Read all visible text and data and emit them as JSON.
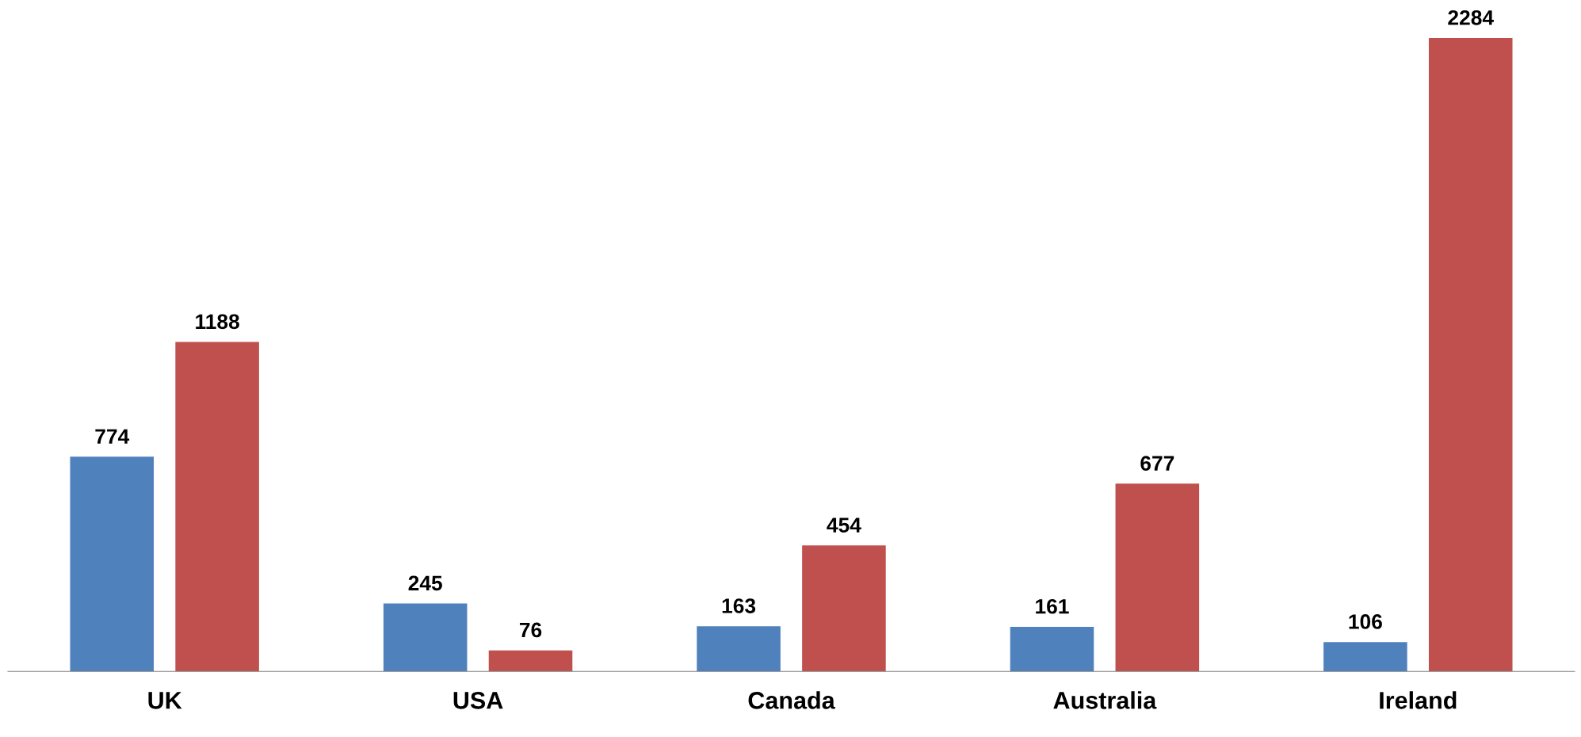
{
  "chart_data": {
    "type": "bar",
    "categories": [
      "UK",
      "USA",
      "Canada",
      "Australia",
      "Ireland"
    ],
    "series": [
      {
        "color": "#4f81bd",
        "values": [
          774,
          245,
          163,
          161,
          106
        ]
      },
      {
        "color": "#c0504d",
        "values": [
          1188,
          76,
          454,
          677,
          2284
        ]
      }
    ],
    "data_labels": true
  }
}
